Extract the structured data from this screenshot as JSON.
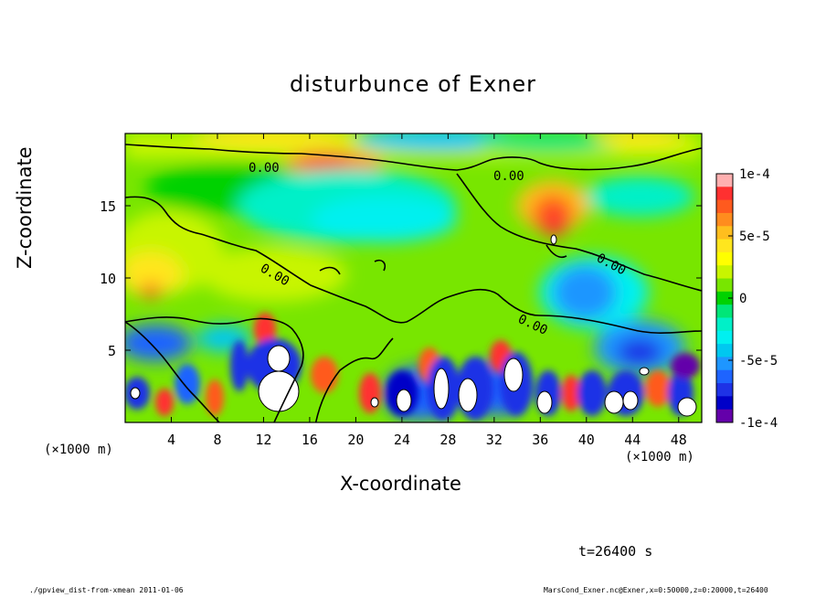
{
  "chart_data": {
    "type": "heatmap",
    "title": "disturbunce of Exner",
    "xlabel": "X-coordinate",
    "ylabel": "Z-coordinate",
    "x_unit": "(×1000 m)",
    "xlim": [
      0,
      50
    ],
    "ylim": [
      0,
      20
    ],
    "x_ticks": [
      4,
      8,
      12,
      16,
      20,
      24,
      28,
      32,
      36,
      40,
      44,
      48
    ],
    "y_ticks": [
      5,
      10,
      15
    ],
    "colorbar": {
      "range": [
        -0.0001,
        0.0001
      ],
      "tick_labels": [
        "1e-4",
        "5e-5",
        "0",
        "-5e-5",
        "-1e-4"
      ],
      "tick_values": [
        0.0001,
        5e-05,
        0,
        -5e-05,
        -0.0001
      ],
      "colors": [
        "#ffb0b0",
        "#ff3030",
        "#ff5a1e",
        "#ff8c1e",
        "#ffbe1e",
        "#ffe61e",
        "#ffff00",
        "#c8f500",
        "#78e600",
        "#00d200",
        "#00e678",
        "#00f0c8",
        "#00f0f0",
        "#00c8f0",
        "#1e96ff",
        "#1e64ff",
        "#1e32e6",
        "#0000c8",
        "#6400aa"
      ]
    },
    "contours": [
      {
        "label": "0.00",
        "value": 0
      },
      {
        "label": "0.00",
        "value": 0
      },
      {
        "label": "0.00",
        "value": 0
      },
      {
        "label": "0.00",
        "value": 0
      },
      {
        "label": "0.00",
        "value": 0
      }
    ]
  },
  "annotations": {
    "time": "t=26400 s",
    "footer_left": "./gpview_dist-from-xmean  2011-01-06",
    "footer_right": "MarsCond_Exner.nc@Exner,x=0:50000,z=0:20000,t=26400"
  }
}
